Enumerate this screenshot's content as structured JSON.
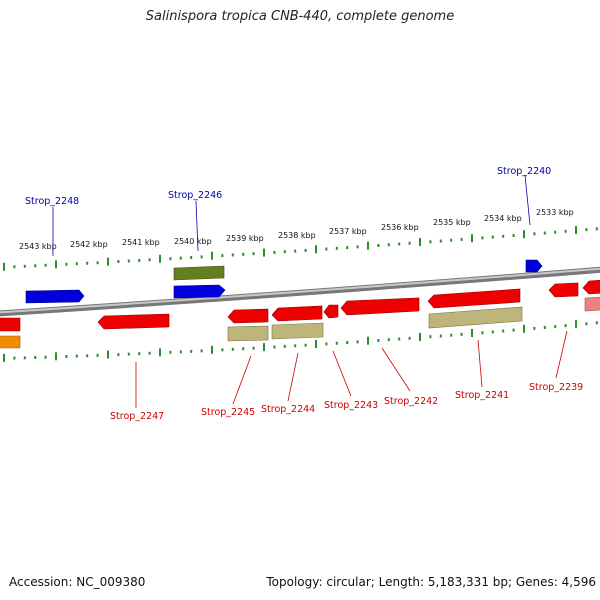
{
  "title": "Salinispora tropica CNB-440, complete genome",
  "footer": {
    "accession": "Accession: NC_009380",
    "summary": "Topology: circular; Length: 5,183,331 bp; Genes: 4,596"
  },
  "colors": {
    "forward_gene": "#0000dd",
    "reverse_gene": "#ee0000",
    "reverse_gene_light": "#ee8080",
    "forward_rna_or_other": "#667d22",
    "reverse_other": "#bdb57a",
    "orange_feature": "#f08c00",
    "backbone": "#999999",
    "tick": "#2e8b2e",
    "forward_label_line": "#0000aa",
    "reverse_label_line": "#cc0000"
  },
  "scale_labels": [
    "2543 kbp",
    "2542 kbp",
    "2541 kbp",
    "2540 kbp",
    "2539 kbp",
    "2538 kbp",
    "2537 kbp",
    "2536 kbp",
    "2535 kbp",
    "2534 kbp",
    "2533 kbp"
  ],
  "forward_labels": [
    "Strop_2248",
    "Strop_2246",
    "Strop_2240"
  ],
  "reverse_labels": [
    "Strop_2247",
    "Strop_2245",
    "Strop_2244",
    "Strop_2243",
    "Strop_2242",
    "Strop_2241",
    "Strop_2239"
  ]
}
